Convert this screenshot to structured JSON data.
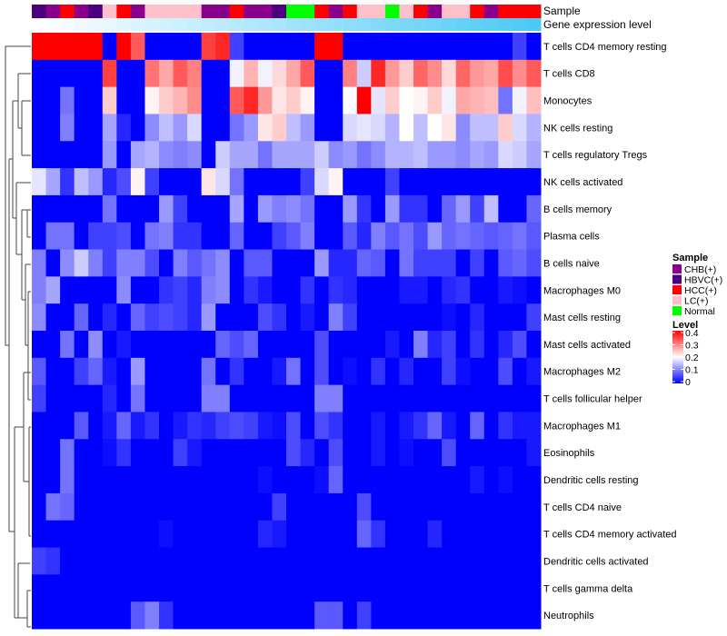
{
  "chart_data": {
    "type": "heatmap",
    "title": "",
    "annotation_labels": {
      "sample": "Sample",
      "gene_level": "Gene expression level"
    },
    "rows": [
      "T cells CD4 memory resting",
      "T cells CD8",
      "Monocytes",
      "NK cells resting",
      "T cells regulatory  Tregs",
      "NK cells activated",
      "B cells memory",
      "Plasma cells",
      "B cells naive",
      "Macrophages M0",
      "Mast cells resting",
      "Mast cells activated",
      "Macrophages M2",
      "T cells follicular helper",
      "Macrophages M1",
      "Eosinophils",
      "Dendritic cells resting",
      "T cells CD4 naive",
      "T cells CD4 memory activated",
      "Dendritic cells activated",
      "T cells gamma delta",
      "Neutrophils"
    ],
    "sample_groups": [
      "HBVC(+)",
      "CHB(+)",
      "HCC(+)",
      "CHB(+)",
      "HBVC(+)",
      "LC(+)",
      "HCC(+)",
      "CHB(+)",
      "LC(+)",
      "LC(+)",
      "LC(+)",
      "LC(+)",
      "CHB(+)",
      "CHB(+)",
      "HCC(+)",
      "CHB(+)",
      "CHB(+)",
      "HBVC(+)",
      "Normal",
      "Normal",
      "HCC(+)",
      "CHB(+)",
      "HCC(+)",
      "LC(+)",
      "LC(+)",
      "Normal",
      "LC(+)",
      "HCC(+)",
      "CHB(+)",
      "LC(+)",
      "LC(+)",
      "HCC(+)",
      "CHB(+)",
      "HCC(+)",
      "HCC(+)",
      "HCC(+)"
    ],
    "sample_colors": {
      "CHB(+)": "#8B008B",
      "HBVC(+)": "#4B0082",
      "HCC(+)": "#FF0000",
      "LC(+)": "#FFC0CB",
      "Normal": "#00FF00"
    },
    "gene_level_colors": [
      "#ffffff",
      "#4dc9f6"
    ],
    "values": [
      [
        0.4,
        0.4,
        0.4,
        0.4,
        0.4,
        0,
        0.4,
        0.33,
        0,
        0,
        0,
        0,
        0.35,
        0.37,
        0.05,
        0,
        0,
        0,
        0,
        0,
        0.4,
        0.4,
        0,
        0,
        0,
        0,
        0,
        0,
        0,
        0,
        0,
        0,
        0,
        0,
        0.05,
        0
      ],
      [
        0,
        0,
        0,
        0,
        0,
        0.35,
        0,
        0,
        0.31,
        0.27,
        0.33,
        0.3,
        0,
        0,
        0.19,
        0.26,
        0.19,
        0.23,
        0.27,
        0.33,
        0,
        0,
        0.3,
        0.16,
        0.37,
        0.28,
        0.24,
        0.32,
        0.29,
        0.23,
        0.32,
        0.28,
        0.27,
        0.34,
        0.29,
        0.33
      ],
      [
        0,
        0,
        0.09,
        0,
        0,
        0.24,
        0,
        0,
        0.21,
        0.24,
        0.26,
        0.29,
        0,
        0,
        0.33,
        0.37,
        0.28,
        0.22,
        0.24,
        0.21,
        0,
        0,
        0.2,
        0.4,
        0.18,
        0.24,
        0.2,
        0.21,
        0.24,
        0.19,
        0.27,
        0.26,
        0.25,
        0.09,
        0.19,
        0.25
      ],
      [
        0,
        0,
        0.1,
        0,
        0,
        0.13,
        0.03,
        0,
        0.11,
        0.15,
        0.12,
        0.17,
        0,
        0,
        0.09,
        0.12,
        0.22,
        0.24,
        0.15,
        0.12,
        0,
        0,
        0.17,
        0.18,
        0.17,
        0.14,
        0.2,
        0.15,
        0.2,
        0.22,
        0.11,
        0.15,
        0.15,
        0.24,
        0.17,
        0.14
      ],
      [
        0,
        0,
        0,
        0,
        0,
        0.12,
        0,
        0.13,
        0.14,
        0.11,
        0.1,
        0.11,
        0,
        0.16,
        0.13,
        0.13,
        0.09,
        0.13,
        0.13,
        0.13,
        0.16,
        0.11,
        0.12,
        0.09,
        0.11,
        0.14,
        0.14,
        0.15,
        0.12,
        0.12,
        0.11,
        0.13,
        0.12,
        0.17,
        0.16,
        0.13
      ],
      [
        0.18,
        0.13,
        0.04,
        0.15,
        0.12,
        0.03,
        0.06,
        0.21,
        0.05,
        0,
        0,
        0,
        0.22,
        0.17,
        0.09,
        0,
        0,
        0,
        0,
        0.05,
        0.17,
        0.21,
        0,
        0,
        0,
        0.05,
        0,
        0,
        0,
        0,
        0,
        0,
        0,
        0,
        0,
        0
      ],
      [
        0,
        0,
        0,
        0,
        0,
        0.09,
        0,
        0,
        0,
        0.12,
        0.05,
        0,
        0,
        0,
        0.13,
        0,
        0.12,
        0.1,
        0.11,
        0.09,
        0,
        0,
        0.12,
        0.04,
        0,
        0.12,
        0.04,
        0.04,
        0,
        0.08,
        0.12,
        0.05,
        0.15,
        0,
        0,
        0.08
      ],
      [
        0,
        0.09,
        0.09,
        0,
        0.05,
        0.05,
        0.06,
        0,
        0.09,
        0.1,
        0.04,
        0.04,
        0,
        0,
        0.08,
        0,
        0,
        0.05,
        0.07,
        0.1,
        0,
        0,
        0.07,
        0.03,
        0.1,
        0.07,
        0.09,
        0.06,
        0.12,
        0.08,
        0.09,
        0.08,
        0.07,
        0.08,
        0.09,
        0.07
      ],
      [
        0.1,
        0,
        0.11,
        0.16,
        0.1,
        0.05,
        0.1,
        0.1,
        0.06,
        0,
        0.1,
        0.07,
        0.09,
        0.11,
        0,
        0.07,
        0.07,
        0,
        0,
        0,
        0.12,
        0.03,
        0.03,
        0.08,
        0.07,
        0,
        0.09,
        0.05,
        0.05,
        0.05,
        0,
        0.05,
        0,
        0.07,
        0.08,
        0.06
      ],
      [
        0.1,
        0.13,
        0,
        0,
        0,
        0,
        0.11,
        0,
        0,
        0.04,
        0.05,
        0.03,
        0.1,
        0.11,
        0,
        0.04,
        0.02,
        0,
        0,
        0.04,
        0,
        0.04,
        0.03,
        0,
        0,
        0,
        0.02,
        0.02,
        0,
        0.03,
        0.04,
        0,
        0,
        0.02,
        0.01,
        0
      ],
      [
        0.11,
        0,
        0,
        0.08,
        0,
        0.03,
        0,
        0.08,
        0.05,
        0.06,
        0.05,
        0.03,
        0.12,
        0,
        0,
        0,
        0.06,
        0.04,
        0,
        0.02,
        0,
        0.1,
        0.05,
        0,
        0,
        0,
        0,
        0,
        0,
        0.01,
        0,
        0.03,
        0,
        0,
        0,
        0.05
      ],
      [
        0,
        0,
        0.09,
        0,
        0.11,
        0,
        0.02,
        0,
        0,
        0,
        0,
        0,
        0,
        0.08,
        0.06,
        0.08,
        0,
        0,
        0,
        0,
        0.06,
        0,
        0,
        0,
        0,
        0.02,
        0,
        0.1,
        0.03,
        0.05,
        0,
        0.04,
        0,
        0.03,
        0.06,
        0
      ],
      [
        0.07,
        0,
        0,
        0.05,
        0.08,
        0.02,
        0,
        0.12,
        0,
        0,
        0,
        0,
        0.09,
        0,
        0.04,
        0,
        0,
        0.02,
        0.09,
        0,
        0.06,
        0,
        0.01,
        0,
        0.04,
        0,
        0.03,
        0,
        0,
        0.05,
        0.01,
        0,
        0,
        0.06,
        0,
        0.02
      ],
      [
        0.05,
        0,
        0,
        0,
        0,
        0.03,
        0,
        0.09,
        0,
        0,
        0,
        0,
        0.1,
        0.1,
        0,
        0,
        0,
        0,
        0,
        0,
        0.1,
        0.1,
        0,
        0,
        0,
        0,
        0,
        0,
        0,
        0,
        0,
        0,
        0,
        0,
        0,
        0
      ],
      [
        0,
        0,
        0,
        0.07,
        0,
        0.02,
        0.08,
        0.02,
        0.04,
        0,
        0.02,
        0.04,
        0.03,
        0.05,
        0.06,
        0.05,
        0.02,
        0.01,
        0.06,
        0,
        0.06,
        0.04,
        0,
        0,
        0.02,
        0,
        0.02,
        0.04,
        0.08,
        0.02,
        0,
        0.08,
        0,
        0.04,
        0.02,
        0.02
      ],
      [
        0,
        0,
        0.09,
        0,
        0,
        0.01,
        0.04,
        0,
        0,
        0,
        0.05,
        0.02,
        0,
        0,
        0,
        0,
        0,
        0,
        0.06,
        0.03,
        0,
        0.06,
        0,
        0,
        0.02,
        0,
        0.01,
        0,
        0,
        0.06,
        0,
        0,
        0,
        0,
        0,
        0.02
      ],
      [
        0,
        0,
        0.09,
        0,
        0,
        0,
        0,
        0,
        0,
        0,
        0,
        0,
        0,
        0,
        0,
        0,
        0.01,
        0,
        0,
        0,
        0.01,
        0.08,
        0,
        0,
        0,
        0,
        0,
        0,
        0,
        0,
        0,
        0.02,
        0,
        0.01,
        0,
        0
      ],
      [
        0,
        0.09,
        0.08,
        0,
        0,
        0,
        0,
        0,
        0,
        0,
        0,
        0,
        0,
        0,
        0,
        0,
        0,
        0.05,
        0,
        0,
        0,
        0,
        0,
        0.06,
        0,
        0,
        0,
        0,
        0,
        0,
        0,
        0,
        0,
        0,
        0,
        0
      ],
      [
        0,
        0,
        0,
        0,
        0,
        0,
        0,
        0,
        0,
        0.01,
        0,
        0,
        0,
        0,
        0,
        0,
        0.03,
        0.02,
        0,
        0,
        0,
        0,
        0,
        0.08,
        0.04,
        0,
        0,
        0,
        0.03,
        0,
        0,
        0,
        0,
        0,
        0,
        0
      ],
      [
        0.05,
        0.04,
        0,
        0,
        0,
        0,
        0,
        0,
        0,
        0,
        0,
        0,
        0,
        0,
        0,
        0,
        0,
        0,
        0,
        0,
        0,
        0,
        0,
        0,
        0,
        0,
        0,
        0,
        0,
        0,
        0,
        0,
        0,
        0,
        0,
        0
      ],
      [
        0,
        0,
        0,
        0,
        0,
        0,
        0,
        0,
        0,
        0,
        0,
        0,
        0,
        0,
        0,
        0,
        0,
        0,
        0,
        0,
        0,
        0,
        0,
        0,
        0,
        0,
        0,
        0,
        0,
        0,
        0,
        0,
        0,
        0,
        0,
        0
      ],
      [
        0,
        0,
        0,
        0,
        0,
        0,
        0,
        0.07,
        0.1,
        0.04,
        0,
        0,
        0,
        0,
        0,
        0,
        0,
        0,
        0,
        0,
        0.07,
        0.07,
        0,
        0.05,
        0,
        0,
        0,
        0,
        0,
        0,
        0,
        0,
        0,
        0,
        0,
        0
      ]
    ],
    "color_scale": {
      "low": "#0000FF",
      "mid": "#FFFFFF",
      "high": "#FF0000",
      "range": [
        0,
        0.4
      ]
    },
    "legend": {
      "sample_title": "Sample",
      "sample_items": [
        "CHB(+)",
        "HBVC(+)",
        "HCC(+)",
        "LC(+)",
        "Normal"
      ],
      "level_title": "Level",
      "level_ticks": [
        "0.4",
        "0.3",
        "0.2",
        "0.1",
        "0"
      ],
      "placement": "right"
    }
  }
}
